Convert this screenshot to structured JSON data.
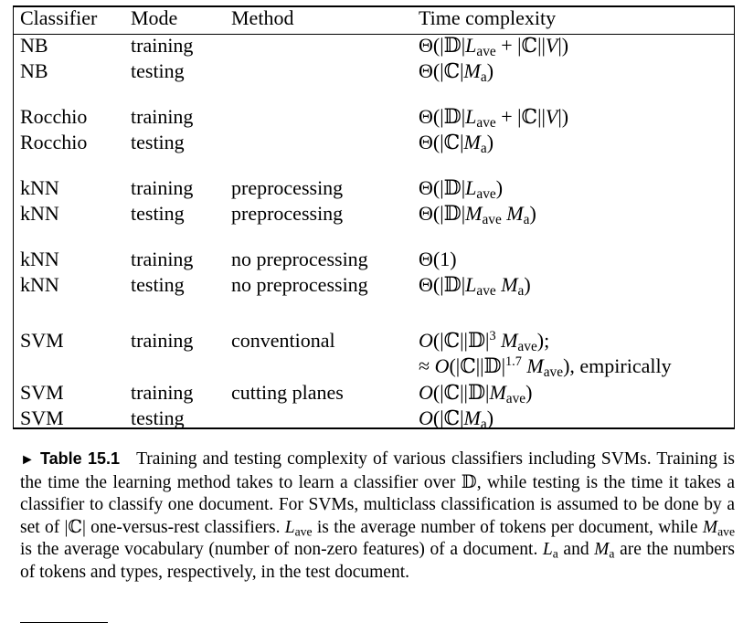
{
  "table": {
    "headers": [
      "Classifier",
      "Mode",
      "Method",
      "Time complexity"
    ],
    "rows": [
      {
        "classifier": "NB",
        "mode": "training",
        "method": "",
        "complexity": "Θ(|𝔻|L_ave + |ℂ||V|)"
      },
      {
        "classifier": "NB",
        "mode": "testing",
        "method": "",
        "complexity": "Θ(|ℂ|M_a)"
      },
      {
        "classifier": "Rocchio",
        "mode": "training",
        "method": "",
        "complexity": "Θ(|𝔻|L_ave + |ℂ||V|)"
      },
      {
        "classifier": "Rocchio",
        "mode": "testing",
        "method": "",
        "complexity": "Θ(|ℂ|M_a)"
      },
      {
        "classifier": "kNN",
        "mode": "training",
        "method": "preprocessing",
        "complexity": "Θ(|𝔻|L_ave)"
      },
      {
        "classifier": "kNN",
        "mode": "testing",
        "method": "preprocessing",
        "complexity": "Θ(|𝔻|M_ave M_a)"
      },
      {
        "classifier": "kNN",
        "mode": "training",
        "method": "no preprocessing",
        "complexity": "Θ(1)"
      },
      {
        "classifier": "kNN",
        "mode": "testing",
        "method": "no preprocessing",
        "complexity": "Θ(|𝔻|L_ave M_a)"
      },
      {
        "classifier": "SVM",
        "mode": "training",
        "method": "conventional",
        "complexity": "O(|ℂ||𝔻|^3 M_ave);",
        "complexity_line2": "≈ O(|ℂ||𝔻|^1.7 M_ave), empirically"
      },
      {
        "classifier": "SVM",
        "mode": "training",
        "method": "cutting planes",
        "complexity": "O(|ℂ||𝔻|M_ave)"
      },
      {
        "classifier": "SVM",
        "mode": "testing",
        "method": "",
        "complexity": "O(|ℂ|M_a)"
      }
    ]
  },
  "caption": {
    "marker": "►",
    "label": "Table 15.1",
    "text": "Training and testing complexity of various classifiers including SVMs. Training is the time the learning method takes to learn a classifier over 𝔻, while testing is the time it takes a classifier to classify one document. For SVMs, multiclass classification is assumed to be done by a set of |ℂ| one-versus-rest classifiers. L_ave is the average number of tokens per document, while M_ave is the average vocabulary (number of non-zero features) of a document. L_a and M_a are the numbers of tokens and types, respectively, in the test document."
  }
}
